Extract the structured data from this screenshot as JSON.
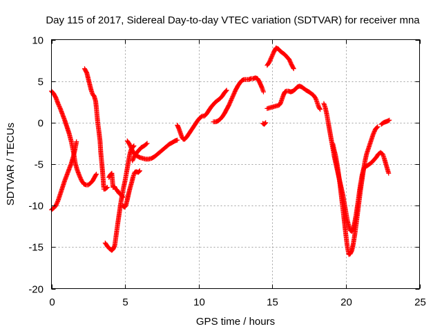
{
  "chart_data": {
    "type": "scatter",
    "title": "Day 115 of 2017, Sidereal Day-to-day VTEC variation (SDTVAR) for receiver mna",
    "xlabel": "GPS time / hours",
    "ylabel": "SDTVAR / TECUs",
    "xlim": [
      0,
      25
    ],
    "ylim": [
      -20,
      10
    ],
    "xticks": [
      0,
      5,
      10,
      15,
      20,
      25
    ],
    "yticks": [
      -20,
      -15,
      -10,
      -5,
      0,
      5,
      10
    ],
    "xtick_labels": [
      "0",
      "5",
      "10",
      "15",
      "20",
      "25"
    ],
    "ytick_labels": [
      "-20",
      "-15",
      "-10",
      "-5",
      "0",
      "5",
      "10"
    ],
    "grid": true,
    "legend": false,
    "marker": "+",
    "color": "#ff0000",
    "segments": [
      [
        [
          0.0,
          3.8
        ],
        [
          0.15,
          3.5
        ],
        [
          0.3,
          3.0
        ],
        [
          0.45,
          2.3
        ],
        [
          0.6,
          1.7
        ],
        [
          0.75,
          1.0
        ],
        [
          0.9,
          0.3
        ],
        [
          1.05,
          -0.5
        ],
        [
          1.2,
          -1.3
        ],
        [
          1.35,
          -2.3
        ],
        [
          1.5,
          -3.6
        ],
        [
          1.62,
          -4.9
        ],
        [
          1.75,
          -5.7
        ],
        [
          1.9,
          -6.4
        ],
        [
          2.05,
          -7.0
        ],
        [
          2.2,
          -7.4
        ],
        [
          2.35,
          -7.5
        ],
        [
          2.5,
          -7.5
        ],
        [
          2.65,
          -7.3
        ],
        [
          2.8,
          -7.0
        ],
        [
          2.95,
          -6.5
        ],
        [
          3.05,
          -6.2
        ]
      ],
      [
        [
          0.0,
          -10.5
        ],
        [
          0.15,
          -10.3
        ],
        [
          0.3,
          -10.0
        ],
        [
          0.45,
          -9.4
        ],
        [
          0.6,
          -8.6
        ],
        [
          0.75,
          -7.8
        ],
        [
          0.9,
          -7.0
        ],
        [
          1.05,
          -6.3
        ],
        [
          1.2,
          -5.6
        ],
        [
          1.35,
          -4.9
        ],
        [
          1.5,
          -4.0
        ],
        [
          1.6,
          -3.2
        ],
        [
          1.7,
          -2.3
        ]
      ],
      [
        [
          2.25,
          6.5
        ],
        [
          2.4,
          6.0
        ],
        [
          2.5,
          5.3
        ],
        [
          2.6,
          4.6
        ],
        [
          2.7,
          3.9
        ],
        [
          2.8,
          3.4
        ],
        [
          2.9,
          3.2
        ],
        [
          3.0,
          2.6
        ],
        [
          3.05,
          1.8
        ],
        [
          3.1,
          0.8
        ],
        [
          3.15,
          -0.1
        ],
        [
          3.22,
          -1.0
        ],
        [
          3.3,
          -2.2
        ],
        [
          3.35,
          -3.6
        ],
        [
          3.42,
          -4.9
        ],
        [
          3.48,
          -6.1
        ],
        [
          3.52,
          -7.0
        ],
        [
          3.55,
          -7.8
        ]
      ],
      [
        [
          3.55,
          -8.0
        ],
        [
          3.65,
          -8.0
        ],
        [
          3.8,
          -7.8
        ]
      ],
      [
        [
          3.9,
          -6.6
        ],
        [
          4.0,
          -6.3
        ],
        [
          4.1,
          -6.1
        ],
        [
          4.18,
          -7.8
        ],
        [
          4.28,
          -7.7
        ],
        [
          4.35,
          -8.0
        ]
      ],
      [
        [
          4.35,
          -8.0
        ],
        [
          4.45,
          -8.1
        ],
        [
          4.55,
          -8.4
        ],
        [
          4.65,
          -8.6
        ],
        [
          4.75,
          -8.7
        ],
        [
          4.85,
          -9.0
        ]
      ],
      [
        [
          3.65,
          -14.5
        ],
        [
          3.8,
          -14.9
        ],
        [
          3.95,
          -15.2
        ],
        [
          4.1,
          -15.4
        ],
        [
          4.2,
          -15.2
        ],
        [
          4.3,
          -14.8
        ],
        [
          4.4,
          -13.5
        ],
        [
          4.5,
          -12.2
        ],
        [
          4.6,
          -11.0
        ],
        [
          4.7,
          -9.8
        ],
        [
          4.8,
          -8.7
        ],
        [
          4.9,
          -7.8
        ],
        [
          5.0,
          -7.0
        ],
        [
          5.1,
          -6.0
        ],
        [
          5.2,
          -5.0
        ],
        [
          5.3,
          -4.0
        ],
        [
          5.4,
          -3.3
        ],
        [
          5.5,
          -3.0
        ],
        [
          5.6,
          -2.8
        ]
      ],
      [
        [
          4.85,
          -10.0
        ],
        [
          4.95,
          -10.2
        ],
        [
          5.05,
          -10.0
        ],
        [
          5.15,
          -9.3
        ],
        [
          5.25,
          -8.5
        ],
        [
          5.35,
          -7.8
        ],
        [
          5.45,
          -7.2
        ],
        [
          5.55,
          -6.5
        ],
        [
          5.65,
          -6.0
        ],
        [
          5.75,
          -5.9
        ],
        [
          5.9,
          -6.0
        ],
        [
          6.0,
          -5.8
        ]
      ],
      [
        [
          5.15,
          -2.2
        ],
        [
          5.3,
          -2.6
        ],
        [
          5.45,
          -3.2
        ],
        [
          5.6,
          -3.7
        ],
        [
          5.8,
          -4.0
        ],
        [
          6.0,
          -4.2
        ],
        [
          6.2,
          -4.3
        ],
        [
          6.4,
          -4.4
        ],
        [
          6.6,
          -4.4
        ],
        [
          6.8,
          -4.3
        ],
        [
          7.0,
          -4.1
        ],
        [
          7.2,
          -3.8
        ],
        [
          7.4,
          -3.5
        ],
        [
          7.6,
          -3.2
        ],
        [
          7.8,
          -2.9
        ],
        [
          8.0,
          -2.6
        ],
        [
          8.2,
          -2.4
        ],
        [
          8.4,
          -2.2
        ],
        [
          8.55,
          -2.1
        ]
      ],
      [
        [
          5.5,
          -4.6
        ],
        [
          5.65,
          -4.0
        ],
        [
          5.8,
          -3.6
        ],
        [
          5.95,
          -3.3
        ],
        [
          6.1,
          -3.0
        ],
        [
          6.3,
          -2.8
        ],
        [
          6.5,
          -2.5
        ]
      ],
      [
        [
          8.55,
          -0.3
        ],
        [
          8.65,
          -0.7
        ],
        [
          8.75,
          -1.2
        ],
        [
          8.85,
          -1.7
        ],
        [
          8.95,
          -2.0
        ],
        [
          9.05,
          -2.0
        ],
        [
          9.2,
          -1.7
        ],
        [
          9.35,
          -1.3
        ],
        [
          9.5,
          -0.9
        ],
        [
          9.65,
          -0.5
        ],
        [
          9.8,
          -0.1
        ],
        [
          9.95,
          0.3
        ],
        [
          10.1,
          0.6
        ],
        [
          10.25,
          0.8
        ],
        [
          10.4,
          0.8
        ],
        [
          10.55,
          1.1
        ],
        [
          10.7,
          1.5
        ],
        [
          10.85,
          1.9
        ],
        [
          11.0,
          2.2
        ],
        [
          11.15,
          2.5
        ],
        [
          11.3,
          2.7
        ],
        [
          11.45,
          2.9
        ],
        [
          11.6,
          3.2
        ],
        [
          11.75,
          3.6
        ],
        [
          11.9,
          3.9
        ]
      ],
      [
        [
          11.0,
          0.1
        ],
        [
          11.15,
          0.1
        ],
        [
          11.3,
          0.2
        ],
        [
          11.45,
          0.4
        ],
        [
          11.6,
          0.7
        ],
        [
          11.75,
          1.1
        ],
        [
          11.9,
          1.6
        ],
        [
          12.05,
          2.1
        ],
        [
          12.2,
          2.7
        ],
        [
          12.35,
          3.3
        ],
        [
          12.5,
          3.9
        ],
        [
          12.65,
          4.4
        ],
        [
          12.8,
          4.8
        ],
        [
          12.95,
          5.1
        ],
        [
          13.1,
          5.2
        ],
        [
          13.25,
          5.2
        ],
        [
          13.4,
          5.2
        ],
        [
          13.55,
          5.3
        ],
        [
          13.7,
          5.3
        ],
        [
          13.85,
          5.4
        ],
        [
          14.0,
          5.3
        ],
        [
          14.1,
          5.0
        ],
        [
          14.2,
          4.6
        ],
        [
          14.3,
          4.2
        ],
        [
          14.4,
          3.7
        ]
      ],
      [
        [
          14.35,
          -0.1
        ],
        [
          14.45,
          -0.2
        ],
        [
          14.55,
          0.0
        ]
      ],
      [
        [
          14.65,
          1.7
        ],
        [
          14.85,
          1.8
        ],
        [
          15.05,
          1.9
        ],
        [
          15.25,
          2.0
        ],
        [
          15.45,
          2.1
        ],
        [
          15.55,
          2.3
        ],
        [
          15.65,
          2.8
        ],
        [
          15.75,
          3.3
        ],
        [
          15.85,
          3.7
        ],
        [
          15.95,
          3.8
        ],
        [
          16.1,
          3.8
        ],
        [
          16.25,
          3.7
        ],
        [
          16.4,
          3.8
        ],
        [
          16.55,
          4.0
        ],
        [
          16.7,
          4.3
        ],
        [
          16.85,
          4.4
        ],
        [
          17.0,
          4.3
        ],
        [
          17.15,
          4.1
        ],
        [
          17.3,
          3.9
        ],
        [
          17.5,
          3.7
        ],
        [
          17.65,
          3.5
        ],
        [
          17.8,
          3.3
        ],
        [
          17.95,
          2.9
        ],
        [
          18.05,
          2.4
        ],
        [
          18.15,
          1.9
        ],
        [
          18.25,
          1.6
        ]
      ],
      [
        [
          14.65,
          6.9
        ],
        [
          14.8,
          7.3
        ],
        [
          14.95,
          7.9
        ],
        [
          15.1,
          8.5
        ],
        [
          15.25,
          9.0
        ],
        [
          15.4,
          8.9
        ],
        [
          15.55,
          8.6
        ],
        [
          15.7,
          8.4
        ],
        [
          15.85,
          8.2
        ],
        [
          16.0,
          7.9
        ],
        [
          16.15,
          7.6
        ],
        [
          16.3,
          7.0
        ],
        [
          16.45,
          6.5
        ]
      ],
      [
        [
          18.5,
          2.3
        ],
        [
          18.6,
          1.8
        ],
        [
          18.7,
          1.0
        ],
        [
          18.8,
          0.0
        ],
        [
          18.9,
          -1.0
        ],
        [
          19.0,
          -2.0
        ],
        [
          19.1,
          -3.0
        ],
        [
          19.2,
          -4.0
        ],
        [
          19.3,
          -4.8
        ],
        [
          19.4,
          -5.6
        ],
        [
          19.5,
          -6.4
        ],
        [
          19.6,
          -7.2
        ],
        [
          19.7,
          -8.0
        ],
        [
          19.8,
          -8.8
        ],
        [
          19.9,
          -9.8
        ],
        [
          20.0,
          -10.8
        ],
        [
          20.1,
          -11.8
        ],
        [
          20.2,
          -12.5
        ],
        [
          20.3,
          -13.0
        ],
        [
          20.4,
          -13.1
        ],
        [
          20.5,
          -12.8
        ],
        [
          20.6,
          -12.0
        ],
        [
          20.7,
          -11.0
        ],
        [
          20.8,
          -9.8
        ],
        [
          20.9,
          -8.5
        ],
        [
          21.0,
          -7.3
        ],
        [
          21.1,
          -6.3
        ],
        [
          21.2,
          -5.6
        ],
        [
          21.3,
          -5.3
        ],
        [
          21.45,
          -5.2
        ],
        [
          21.6,
          -5.0
        ],
        [
          21.75,
          -4.8
        ],
        [
          21.9,
          -4.5
        ],
        [
          22.05,
          -4.2
        ],
        [
          22.2,
          -3.8
        ],
        [
          22.35,
          -3.6
        ],
        [
          22.5,
          -3.8
        ],
        [
          22.6,
          -4.3
        ],
        [
          22.7,
          -4.9
        ],
        [
          22.8,
          -5.5
        ],
        [
          22.9,
          -6.1
        ]
      ],
      [
        [
          19.1,
          -2.5
        ],
        [
          19.2,
          -3.3
        ],
        [
          19.3,
          -4.0
        ],
        [
          19.4,
          -5.0
        ],
        [
          19.5,
          -6.2
        ],
        [
          19.6,
          -7.5
        ],
        [
          19.7,
          -9.0
        ],
        [
          19.8,
          -10.5
        ],
        [
          19.9,
          -12.0
        ],
        [
          20.0,
          -13.6
        ],
        [
          20.1,
          -15.0
        ],
        [
          20.2,
          -15.9
        ],
        [
          20.3,
          -15.8
        ],
        [
          20.4,
          -15.4
        ],
        [
          20.5,
          -14.6
        ],
        [
          20.6,
          -13.5
        ],
        [
          20.7,
          -12.2
        ],
        [
          20.8,
          -10.8
        ],
        [
          20.9,
          -9.4
        ],
        [
          21.0,
          -8.0
        ],
        [
          21.1,
          -6.8
        ],
        [
          21.2,
          -5.6
        ],
        [
          21.3,
          -4.6
        ],
        [
          21.4,
          -3.8
        ],
        [
          21.55,
          -3.0
        ],
        [
          21.7,
          -2.2
        ],
        [
          21.85,
          -1.4
        ],
        [
          22.0,
          -0.8
        ],
        [
          22.15,
          -0.5
        ]
      ],
      [
        [
          22.4,
          -0.2
        ],
        [
          22.55,
          0.0
        ],
        [
          22.7,
          0.1
        ],
        [
          22.85,
          0.2
        ],
        [
          22.95,
          0.3
        ]
      ]
    ]
  }
}
